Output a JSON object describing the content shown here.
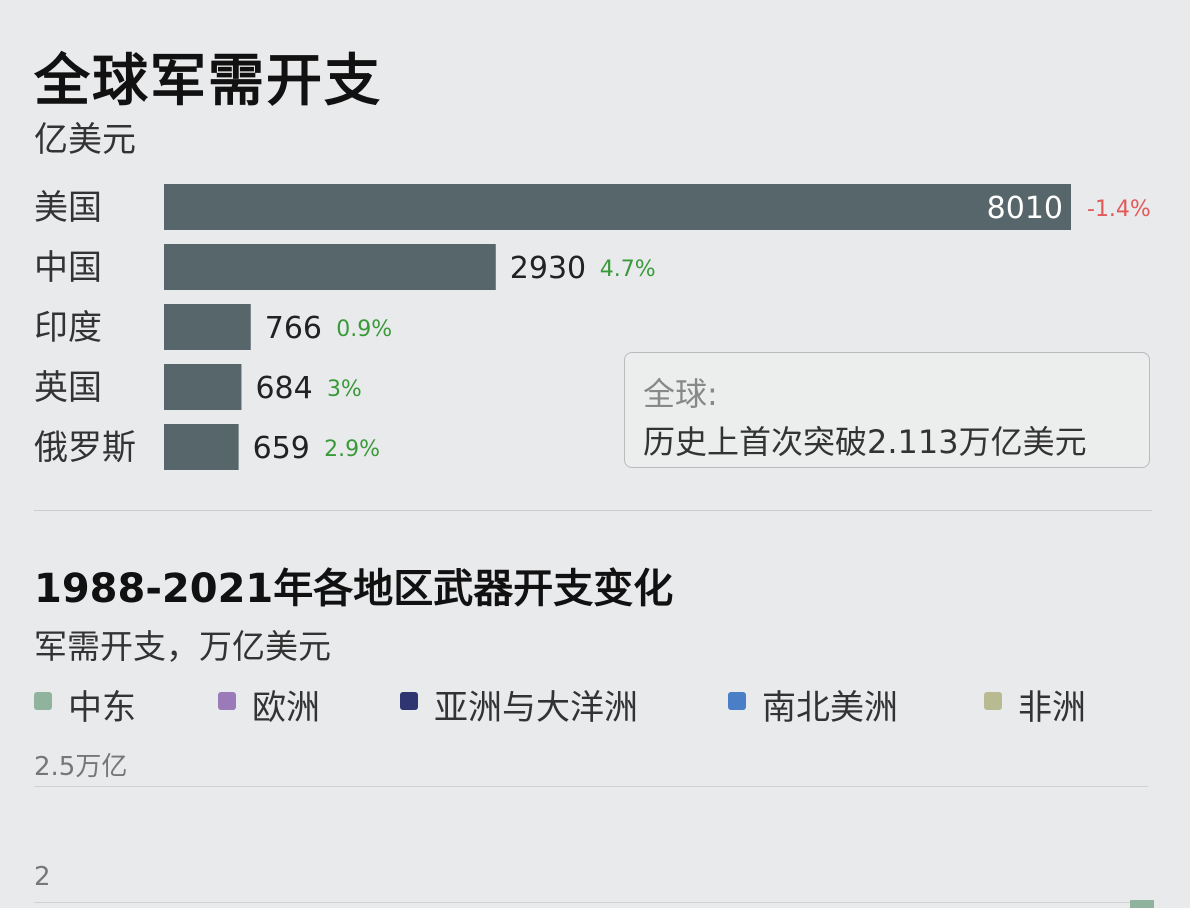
{
  "title": "全球军需开支",
  "unit": "亿美元",
  "callout": {
    "line1": "全球:",
    "line2": "历史上首次突破2.113万亿美元"
  },
  "chart_data": [
    {
      "type": "bar",
      "orientation": "horizontal",
      "title": "全球军需开支",
      "unit": "亿美元",
      "categories": [
        "美国",
        "中国",
        "印度",
        "英国",
        "俄罗斯"
      ],
      "values": [
        8010,
        2930,
        766,
        684,
        659
      ],
      "value_labels": [
        "8010",
        "2930",
        "766",
        "684",
        "659"
      ],
      "changes": [
        "-1.4%",
        "4.7%",
        "0.9%",
        "3%",
        "2.9%"
      ],
      "colors": {
        "bar": "#56666a",
        "negative": "#e05a5a",
        "positive": "#3a9a3a"
      }
    },
    {
      "type": "area",
      "title": "1988-2021年各地区武器开支变化",
      "subtitle": "军需开支，万亿美元",
      "series": [
        {
          "name": "中东",
          "color": "#8fb39c"
        },
        {
          "name": "欧洲",
          "color": "#9a7ab8"
        },
        {
          "name": "亚洲与大洋洲",
          "color": "#2e3570"
        },
        {
          "name": "南北美洲",
          "color": "#4a7fc8"
        },
        {
          "name": "非洲",
          "color": "#b8ba92"
        }
      ],
      "y_ticks": [
        "2.5万亿",
        "2"
      ]
    }
  ]
}
